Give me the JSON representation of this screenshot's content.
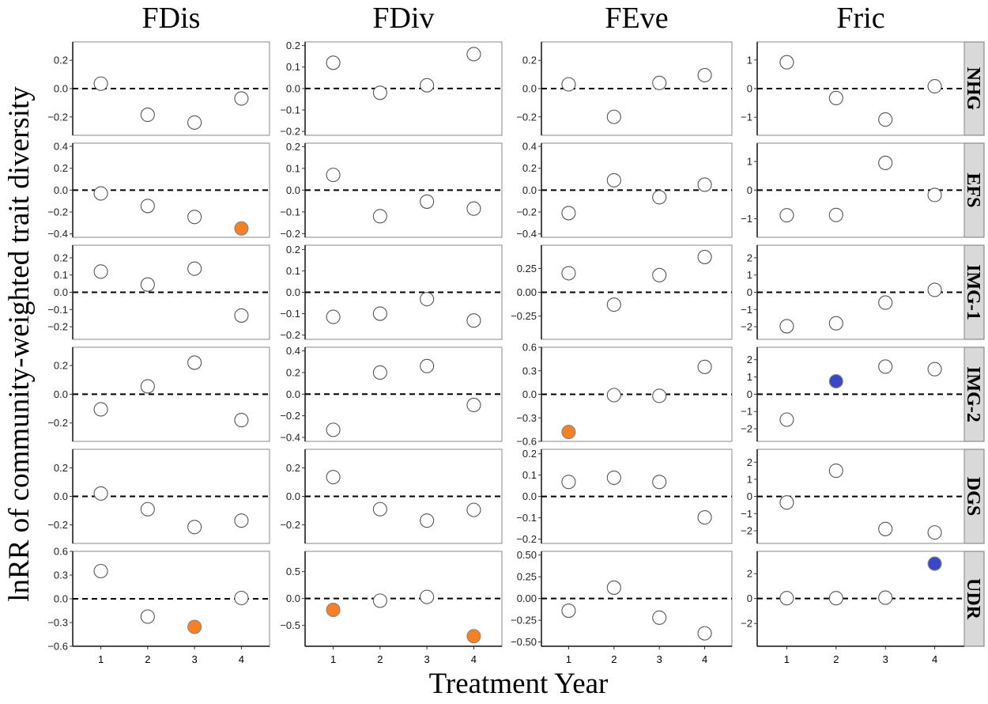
{
  "chart_data": {
    "type": "scatter",
    "xlabel": "Treatment Year",
    "ylabel": "lnRR of community-weighted trait diversity",
    "x": [
      1,
      2,
      3,
      4
    ],
    "x_tick_labels": [
      "1",
      "2",
      "3",
      "4"
    ],
    "xlim": [
      0.4,
      4.6
    ],
    "columns": [
      "FDis",
      "FDiv",
      "FEve",
      "Fric"
    ],
    "rows": [
      "NHG",
      "EFS",
      "IMG-1",
      "IMG-2",
      "DGS",
      "UDR"
    ],
    "reference_line": {
      "y": 0,
      "style": "dashed"
    },
    "colors": {
      "none": "#ffffff",
      "negative": "#F58025",
      "positive": "#3A47C8",
      "strip": "#D9D9D9"
    },
    "panels": [
      [
        {
          "ylim": [
            -0.33,
            0.33
          ],
          "ticks": [
            0.2,
            0,
            -0.2
          ],
          "tick_labels": [
            "0.2",
            "0.0",
            "−0.2"
          ],
          "values": [
            0.035,
            -0.185,
            -0.24,
            -0.07
          ],
          "highlight": [
            "none",
            "none",
            "none",
            "none"
          ]
        },
        {
          "ylim": [
            -0.218,
            0.217
          ],
          "ticks": [
            0.2,
            0.1,
            0,
            -0.1,
            -0.2
          ],
          "tick_labels": [
            "0.2",
            "0.1",
            "0.0",
            "−0.1",
            "−0.2"
          ],
          "values": [
            0.12,
            -0.02,
            0.015,
            0.16
          ],
          "highlight": [
            "none",
            "none",
            "none",
            "none"
          ]
        },
        {
          "ylim": [
            -0.33,
            0.33
          ],
          "ticks": [
            0.2,
            0,
            -0.2
          ],
          "tick_labels": [
            "0.2",
            "0.0",
            "−0.2"
          ],
          "values": [
            0.03,
            -0.2,
            0.04,
            0.095
          ],
          "highlight": [
            "none",
            "none",
            "none",
            "none"
          ]
        },
        {
          "ylim": [
            -1.63,
            1.63
          ],
          "ticks": [
            1,
            0,
            -1
          ],
          "tick_labels": [
            "1",
            "0",
            "−1"
          ],
          "values": [
            0.92,
            -0.33,
            -1.08,
            0.08
          ],
          "highlight": [
            "none",
            "none",
            "none",
            "none"
          ]
        }
      ],
      [
        {
          "ylim": [
            -0.431,
            0.429
          ],
          "ticks": [
            0.4,
            0.2,
            0,
            -0.2,
            -0.4
          ],
          "tick_labels": [
            "0.4",
            "0.2",
            "0.0",
            "−0.2",
            "−0.4"
          ],
          "values": [
            -0.03,
            -0.145,
            -0.245,
            -0.35
          ],
          "highlight": [
            "none",
            "none",
            "none",
            "negative"
          ]
        },
        {
          "ylim": [
            -0.217,
            0.216
          ],
          "ticks": [
            0.2,
            0.1,
            0,
            -0.1,
            -0.2
          ],
          "tick_labels": [
            "0.2",
            "0.1",
            "0.0",
            "−0.1",
            "−0.2"
          ],
          "values": [
            0.07,
            -0.12,
            -0.053,
            -0.085
          ],
          "highlight": [
            "none",
            "none",
            "none",
            "none"
          ]
        },
        {
          "ylim": [
            -0.431,
            0.429
          ],
          "ticks": [
            0.4,
            0.2,
            0,
            -0.2,
            -0.4
          ],
          "tick_labels": [
            "0.4",
            "0.2",
            "0.0",
            "−0.2",
            "−0.4"
          ],
          "values": [
            -0.21,
            0.09,
            -0.065,
            0.05
          ],
          "highlight": [
            "none",
            "none",
            "none",
            "none"
          ]
        },
        {
          "ylim": [
            -1.65,
            1.64
          ],
          "ticks": [
            1,
            0,
            -1
          ],
          "tick_labels": [
            "1",
            "0",
            "−1"
          ],
          "values": [
            -0.88,
            -0.87,
            0.95,
            -0.17
          ],
          "highlight": [
            "none",
            "none",
            "none",
            "none"
          ]
        }
      ],
      [
        {
          "ylim": [
            -0.273,
            0.273
          ],
          "ticks": [
            0.2,
            0.1,
            0,
            -0.1,
            -0.2
          ],
          "tick_labels": [
            "0.2",
            "0.1",
            "0.0",
            "−0.1",
            "−0.2"
          ],
          "values": [
            0.12,
            0.045,
            0.137,
            -0.135
          ],
          "highlight": [
            "none",
            "none",
            "none",
            "none"
          ]
        },
        {
          "ylim": [
            -0.22,
            0.22
          ],
          "ticks": [
            0.2,
            0.1,
            0,
            -0.1,
            -0.2
          ],
          "tick_labels": [
            "0.2",
            "0.1",
            "0.0",
            "−0.1",
            "−0.2"
          ],
          "values": [
            -0.115,
            -0.1,
            -0.032,
            -0.132
          ],
          "highlight": [
            "none",
            "none",
            "none",
            "none"
          ]
        },
        {
          "ylim": [
            -0.494,
            0.494
          ],
          "ticks": [
            0.25,
            0,
            -0.25
          ],
          "tick_labels": [
            "0.25",
            "0.00",
            "−0.25"
          ],
          "values": [
            0.2,
            -0.13,
            0.18,
            0.37
          ],
          "highlight": [
            "none",
            "none",
            "none",
            "none"
          ]
        },
        {
          "ylim": [
            -2.73,
            2.73
          ],
          "ticks": [
            2,
            1,
            0,
            -1,
            -2
          ],
          "tick_labels": [
            "2",
            "1",
            "0",
            "−1",
            "−2"
          ],
          "values": [
            -1.97,
            -1.8,
            -0.6,
            0.14
          ],
          "highlight": [
            "none",
            "none",
            "none",
            "none"
          ]
        }
      ],
      [
        {
          "ylim": [
            -0.328,
            0.327
          ],
          "ticks": [
            0.2,
            0,
            -0.2
          ],
          "tick_labels": [
            "0.2",
            "0.0",
            "−0.2"
          ],
          "values": [
            -0.105,
            0.055,
            0.22,
            -0.18
          ],
          "highlight": [
            "none",
            "none",
            "none",
            "none"
          ]
        },
        {
          "ylim": [
            -0.437,
            0.434
          ],
          "ticks": [
            0.4,
            0.2,
            0,
            -0.2,
            -0.4
          ],
          "tick_labels": [
            "0.4",
            "0.2",
            "0.0",
            "−0.2",
            "−0.4"
          ],
          "values": [
            -0.33,
            0.2,
            0.26,
            -0.1
          ],
          "highlight": [
            "none",
            "none",
            "none",
            "none"
          ]
        },
        {
          "ylim": [
            -0.6,
            0.6
          ],
          "ticks": [
            0.6,
            0.3,
            0,
            -0.3,
            -0.6
          ],
          "tick_labels": [
            "0.6",
            "0.3",
            "0.0",
            "−0.3",
            "−0.6"
          ],
          "values": [
            -0.48,
            -0.01,
            -0.02,
            0.35
          ],
          "highlight": [
            "negative",
            "none",
            "none",
            "none"
          ]
        },
        {
          "ylim": [
            -2.73,
            2.72
          ],
          "ticks": [
            2,
            1,
            0,
            -1,
            -2
          ],
          "tick_labels": [
            "2",
            "1",
            "0",
            "−1",
            "−2"
          ],
          "values": [
            -1.47,
            0.75,
            1.6,
            1.45
          ],
          "highlight": [
            "none",
            "positive",
            "none",
            "none"
          ]
        }
      ],
      [
        {
          "ylim": [
            -0.33,
            0.33
          ],
          "ticks": [
            0.2,
            0,
            -0.2
          ],
          "tick_labels": [
            "0.2",
            "0.0",
            "−0.2"
          ],
          "values": [
            0.02,
            -0.09,
            -0.215,
            -0.17
          ],
          "highlight": [
            "none",
            "none",
            "none",
            "none"
          ]
        },
        {
          "ylim": [
            -0.33,
            0.33
          ],
          "ticks": [
            0.2,
            0,
            -0.2
          ],
          "tick_labels": [
            "0.2",
            "0.0",
            "−0.2"
          ],
          "values": [
            0.135,
            -0.09,
            -0.17,
            -0.095
          ],
          "highlight": [
            "none",
            "none",
            "none",
            "none"
          ]
        },
        {
          "ylim": [
            -0.22,
            0.221
          ],
          "ticks": [
            0.2,
            0.1,
            0,
            -0.1,
            -0.2
          ],
          "tick_labels": [
            "0.2",
            "0.1",
            "0.0",
            "−0.1",
            "−0.2"
          ],
          "values": [
            0.068,
            0.088,
            0.068,
            -0.098
          ],
          "highlight": [
            "none",
            "none",
            "none",
            "none"
          ]
        },
        {
          "ylim": [
            -2.74,
            2.75
          ],
          "ticks": [
            2,
            1,
            0,
            -1,
            -2
          ],
          "tick_labels": [
            "2",
            "1",
            "0",
            "−1",
            "−2"
          ],
          "values": [
            -0.35,
            1.5,
            -1.9,
            -2.1
          ],
          "highlight": [
            "none",
            "none",
            "none",
            "none"
          ]
        }
      ],
      [
        {
          "ylim": [
            -0.6,
            0.6
          ],
          "ticks": [
            0.6,
            0.3,
            0,
            -0.3,
            -0.6
          ],
          "tick_labels": [
            "0.6",
            "0.3",
            "0.0",
            "−0.3",
            "−0.6"
          ],
          "values": [
            0.35,
            -0.225,
            -0.355,
            0.01
          ],
          "highlight": [
            "none",
            "none",
            "negative",
            "none"
          ]
        },
        {
          "ylim": [
            -0.887,
            0.877
          ],
          "ticks": [
            0.5,
            0,
            -0.5
          ],
          "tick_labels": [
            "0.5",
            "0.0",
            "−0.5"
          ],
          "values": [
            -0.21,
            -0.04,
            0.03,
            -0.7
          ],
          "highlight": [
            "negative",
            "none",
            "none",
            "negative"
          ]
        },
        {
          "ylim": [
            -0.549,
            0.543
          ],
          "ticks": [
            0.5,
            0.25,
            0,
            -0.25,
            -0.5
          ],
          "tick_labels": [
            "0.50",
            "0.25",
            "0.00",
            "−0.25",
            "−0.50"
          ],
          "values": [
            -0.14,
            0.125,
            -0.22,
            -0.4
          ],
          "highlight": [
            "none",
            "none",
            "none",
            "none"
          ]
        },
        {
          "ylim": [
            -3.83,
            3.79
          ],
          "ticks": [
            2,
            0,
            -2
          ],
          "tick_labels": [
            "2",
            "0",
            "−2"
          ],
          "values": [
            0.03,
            0.03,
            0.07,
            2.8
          ],
          "highlight": [
            "none",
            "none",
            "none",
            "positive"
          ]
        }
      ]
    ]
  }
}
